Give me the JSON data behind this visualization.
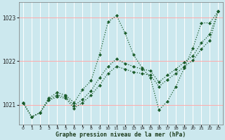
{
  "xlabel": "Graphe pression niveau de la mer (hPa)",
  "bg_color": "#cce8ee",
  "grid_color_v": "#ffffff",
  "grid_color_h": "#ffaaaa",
  "line_color": "#1a5c2a",
  "marker_color": "#1a5c2a",
  "series1_x": [
    0,
    1,
    2,
    3,
    4,
    5,
    6,
    7,
    8,
    9,
    10,
    11,
    12,
    13,
    14,
    15,
    16,
    17,
    18,
    19,
    20,
    21,
    22,
    23
  ],
  "series1_y": [
    1021.05,
    1020.72,
    1020.82,
    1021.15,
    1021.28,
    1021.22,
    1021.05,
    1021.35,
    1021.55,
    1022.15,
    1022.9,
    1023.05,
    1022.65,
    1022.15,
    1021.85,
    1021.62,
    1020.88,
    1021.08,
    1021.42,
    1021.85,
    1022.3,
    1022.88,
    1022.88,
    1023.15
  ],
  "series2_x": [
    0,
    1,
    2,
    3,
    4,
    5,
    6,
    7,
    8,
    9,
    10,
    11,
    12,
    13,
    14,
    15,
    16,
    17,
    18,
    19,
    20,
    21,
    22,
    23
  ],
  "series2_y": [
    1021.05,
    1020.72,
    1020.82,
    1021.12,
    1021.22,
    1021.18,
    1020.98,
    1021.12,
    1021.32,
    1021.62,
    1021.88,
    1022.05,
    1021.95,
    1021.88,
    1021.82,
    1021.78,
    1021.52,
    1021.68,
    1021.82,
    1021.98,
    1022.12,
    1022.42,
    1022.62,
    1023.15
  ],
  "series3_x": [
    0,
    1,
    2,
    3,
    4,
    5,
    6,
    7,
    8,
    9,
    10,
    11,
    12,
    13,
    14,
    15,
    16,
    17,
    18,
    19,
    20,
    21,
    22,
    23
  ],
  "series3_y": [
    1021.05,
    1020.72,
    1020.82,
    1021.1,
    1021.18,
    1021.15,
    1020.92,
    1021.05,
    1021.22,
    1021.45,
    1021.72,
    1021.88,
    1021.82,
    1021.75,
    1021.72,
    1021.68,
    1021.42,
    1021.58,
    1021.72,
    1021.88,
    1022.02,
    1022.28,
    1022.48,
    1023.15
  ],
  "ylim_min": 1020.55,
  "ylim_max": 1023.35,
  "yticks": [
    1021,
    1022,
    1023
  ],
  "xlim_min": -0.5,
  "xlim_max": 23.5
}
